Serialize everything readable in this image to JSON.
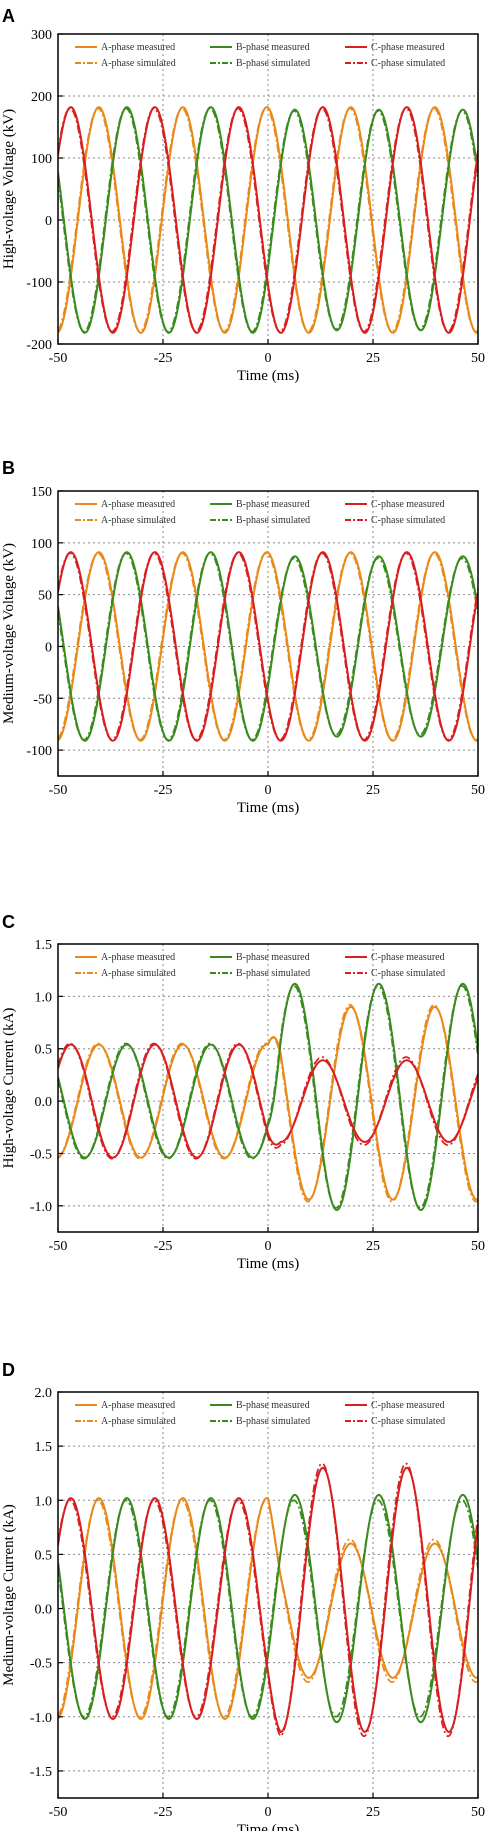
{
  "colors": {
    "a_phase": "#e8891a",
    "b_phase": "#3a8a1e",
    "c_phase": "#d81e1e",
    "grid": "#8a8a8a",
    "axis": "#000000"
  },
  "chart_data": [
    {
      "panel": "A",
      "type": "line",
      "xlabel": "Time (ms)",
      "ylabel": "High-voltage Voltage (kV)",
      "xlim": [
        -50,
        50
      ],
      "ylim": [
        -200,
        300
      ],
      "xticks": [
        "-50",
        "-25",
        "0",
        "25",
        "50"
      ],
      "yticks": [
        "300",
        "200",
        "100",
        "0",
        "-100",
        "-200"
      ],
      "xtick_values": [
        -50,
        -25,
        0,
        25,
        50
      ],
      "ytick_values": [
        300,
        200,
        100,
        0,
        -100,
        -200
      ],
      "grid": true,
      "legend_position": "top",
      "waveform": {
        "frequency_hz": 50,
        "phase_order": "A-B-C",
        "A_phase_at_t0_deg": 95
      },
      "series": [
        {
          "name": "A-phase measured",
          "phase": "A",
          "style": "solid",
          "amplitude_before": 182,
          "amplitude_after": 182
        },
        {
          "name": "A-phase simulated",
          "phase": "A",
          "style": "dashdot",
          "amplitude_before": 180,
          "amplitude_after": 180
        },
        {
          "name": "B-phase measured",
          "phase": "B",
          "style": "solid",
          "amplitude_before": 182,
          "amplitude_after": 178
        },
        {
          "name": "B-phase simulated",
          "phase": "B",
          "style": "dashdot",
          "amplitude_before": 180,
          "amplitude_after": 176
        },
        {
          "name": "C-phase measured",
          "phase": "C",
          "style": "solid",
          "amplitude_before": 182,
          "amplitude_after": 182
        },
        {
          "name": "C-phase simulated",
          "phase": "C",
          "style": "dashdot",
          "amplitude_before": 180,
          "amplitude_after": 180
        }
      ]
    },
    {
      "panel": "B",
      "type": "line",
      "xlabel": "Time (ms)",
      "ylabel": "Medium-voltage Voltage (kV)",
      "xlim": [
        -50,
        50
      ],
      "ylim": [
        -125,
        150
      ],
      "xticks": [
        "-50",
        "-25",
        "0",
        "25",
        "50"
      ],
      "yticks": [
        "150",
        "100",
        "50",
        "0",
        "-50",
        "-100"
      ],
      "xtick_values": [
        -50,
        -25,
        0,
        25,
        50
      ],
      "ytick_values": [
        150,
        100,
        50,
        0,
        -50,
        -100
      ],
      "grid": true,
      "legend_position": "top",
      "waveform": {
        "frequency_hz": 50,
        "phase_order": "A-B-C",
        "A_phase_at_t0_deg": 95
      },
      "series": [
        {
          "name": "A-phase measured",
          "phase": "A",
          "style": "solid",
          "amplitude_before": 91,
          "amplitude_after": 91
        },
        {
          "name": "A-phase simulated",
          "phase": "A",
          "style": "dashdot",
          "amplitude_before": 90,
          "amplitude_after": 90
        },
        {
          "name": "B-phase measured",
          "phase": "B",
          "style": "solid",
          "amplitude_before": 91,
          "amplitude_after": 87
        },
        {
          "name": "B-phase simulated",
          "phase": "B",
          "style": "dashdot",
          "amplitude_before": 90,
          "amplitude_after": 85
        },
        {
          "name": "C-phase measured",
          "phase": "C",
          "style": "solid",
          "amplitude_before": 91,
          "amplitude_after": 91
        },
        {
          "name": "C-phase simulated",
          "phase": "C",
          "style": "dashdot",
          "amplitude_before": 90,
          "amplitude_after": 90
        }
      ]
    },
    {
      "panel": "C",
      "type": "line",
      "xlabel": "Time (ms)",
      "ylabel": "High-voltage Current (kA)",
      "xlim": [
        -50,
        50
      ],
      "ylim": [
        -1.25,
        1.5
      ],
      "xticks": [
        "-50",
        "-25",
        "0",
        "25",
        "50"
      ],
      "yticks": [
        "1.5",
        "1.0",
        "0.5",
        "0.0",
        "-0.5",
        "-1.0"
      ],
      "xtick_values": [
        -50,
        -25,
        0,
        25,
        50
      ],
      "ytick_values": [
        1.5,
        1.0,
        0.5,
        0.0,
        -0.5,
        -1.0
      ],
      "grid": true,
      "legend_position": "top",
      "waveform": {
        "frequency_hz": 50,
        "phase_order": "A-B-C",
        "A_phase_at_t0_deg": 95
      },
      "series": [
        {
          "name": "A-phase measured",
          "phase": "A",
          "style": "solid",
          "amplitude_before": 0.54,
          "amplitude_after": 0.92,
          "offset_after": -0.02
        },
        {
          "name": "A-phase simulated",
          "phase": "A",
          "style": "dashdot",
          "amplitude_before": 0.55,
          "amplitude_after": 0.94,
          "offset_after": -0.02
        },
        {
          "name": "B-phase measured",
          "phase": "B",
          "style": "solid",
          "amplitude_before": 0.54,
          "amplitude_after": 1.08,
          "offset_after": 0.04
        },
        {
          "name": "B-phase simulated",
          "phase": "B",
          "style": "dashdot",
          "amplitude_before": 0.55,
          "amplitude_after": 1.06,
          "offset_after": 0.04
        },
        {
          "name": "C-phase measured",
          "phase": "C",
          "style": "solid",
          "amplitude_before": 0.54,
          "amplitude_after": 0.39,
          "offset_after": 0.0
        },
        {
          "name": "C-phase simulated",
          "phase": "C",
          "style": "dashdot",
          "amplitude_before": 0.55,
          "amplitude_after": 0.42,
          "offset_after": 0.0
        }
      ]
    },
    {
      "panel": "D",
      "type": "line",
      "xlabel": "Time (ms)",
      "ylabel": "Medium-voltage Current (kA)",
      "xlim": [
        -50,
        50
      ],
      "ylim": [
        -1.75,
        2.0
      ],
      "xticks": [
        "-50",
        "-25",
        "0",
        "25",
        "50"
      ],
      "yticks": [
        "2.0",
        "1.5",
        "1.0",
        "0.5",
        "0.0",
        "-0.5",
        "-1.0",
        "-1.5"
      ],
      "xtick_values": [
        -50,
        -25,
        0,
        25,
        50
      ],
      "ytick_values": [
        2.0,
        1.5,
        1.0,
        0.5,
        0.0,
        -0.5,
        -1.0,
        -1.5
      ],
      "grid": true,
      "legend_position": "top",
      "waveform": {
        "frequency_hz": 50,
        "phase_order": "A-B-C",
        "A_phase_at_t0_deg": 95
      },
      "series": [
        {
          "name": "A-phase measured",
          "phase": "A",
          "style": "solid",
          "amplitude_before": 1.02,
          "amplitude_after": 0.62,
          "offset_after": -0.02
        },
        {
          "name": "A-phase simulated",
          "phase": "A",
          "style": "dashdot",
          "amplitude_before": 1.0,
          "amplitude_after": 0.66,
          "offset_after": -0.02
        },
        {
          "name": "B-phase measured",
          "phase": "B",
          "style": "solid",
          "amplitude_before": 1.02,
          "amplitude_after": 1.05,
          "offset_after": 0.0
        },
        {
          "name": "B-phase simulated",
          "phase": "B",
          "style": "dashdot",
          "amplitude_before": 1.0,
          "amplitude_after": 1.0,
          "offset_after": 0.0
        },
        {
          "name": "C-phase measured",
          "phase": "C",
          "style": "solid",
          "amplitude_before": 1.02,
          "amplitude_after": 1.22,
          "offset_after": 0.08
        },
        {
          "name": "C-phase simulated",
          "phase": "C",
          "style": "dashdot",
          "amplitude_before": 1.0,
          "amplitude_after": 1.26,
          "offset_after": 0.08
        }
      ]
    }
  ]
}
